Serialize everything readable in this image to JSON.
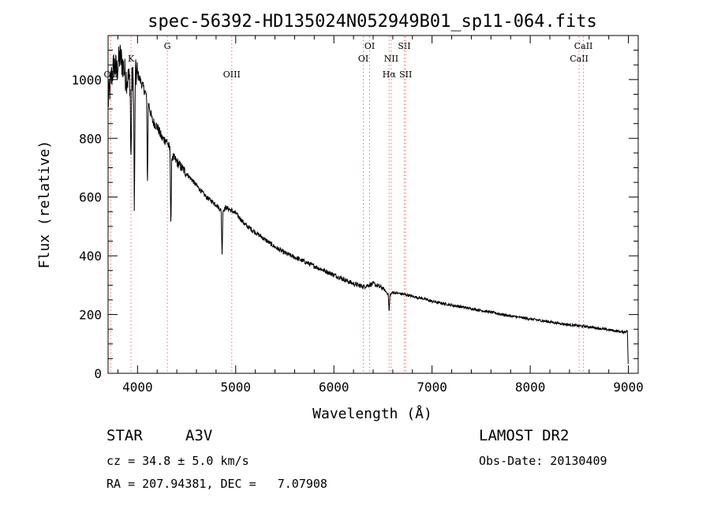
{
  "chart_data": {
    "type": "line",
    "title": "spec-56392-HD135024N052949B01_sp11-064.fits",
    "xlabel": "Wavelength (Å)",
    "ylabel": "Flux (relative)",
    "xlim": [
      3700,
      9100
    ],
    "ylim": [
      0,
      1150
    ],
    "x_ticks": [
      "4000",
      "5000",
      "6000",
      "7000",
      "8000",
      "9000"
    ],
    "x_tick_values": [
      4000,
      5000,
      6000,
      7000,
      8000,
      9000
    ],
    "y_ticks": [
      "0",
      "200",
      "400",
      "600",
      "800",
      "1000"
    ],
    "y_tick_values": [
      0,
      200,
      400,
      600,
      800,
      1000
    ],
    "grid": false,
    "series": [
      {
        "color": "#000000",
        "x": [
          3700,
          3730,
          3760,
          3790,
          3820,
          3850,
          3880,
          3910,
          3940,
          3970,
          4000,
          4050,
          4100,
          4150,
          4200,
          4250,
          4300,
          4350,
          4400,
          4500,
          4600,
          4700,
          4800,
          4861,
          4900,
          5000,
          5100,
          5200,
          5300,
          5400,
          5500,
          5600,
          5700,
          5800,
          5900,
          6000,
          6100,
          6200,
          6300,
          6400,
          6500,
          6563,
          6600,
          6700,
          6800,
          6900,
          7000,
          7200,
          7400,
          7600,
          7800,
          8000,
          8200,
          8400,
          8600,
          8800,
          8950,
          8990,
          9000
        ],
        "y": [
          920,
          1000,
          1050,
          1030,
          1080,
          1050,
          1010,
          1000,
          990,
          1010,
          1020,
          980,
          940,
          860,
          840,
          800,
          790,
          740,
          720,
          680,
          640,
          600,
          575,
          550,
          565,
          545,
          505,
          480,
          455,
          430,
          410,
          395,
          380,
          365,
          350,
          335,
          320,
          305,
          295,
          305,
          290,
          265,
          275,
          270,
          262,
          255,
          245,
          232,
          220,
          208,
          195,
          185,
          175,
          165,
          158,
          148,
          140,
          145,
          0
        ],
        "absorption_features": [
          {
            "x": 3933,
            "depth": 300
          },
          {
            "x": 3968,
            "depth": 500
          },
          {
            "x": 4101,
            "depth": 320
          },
          {
            "x": 4340,
            "depth": 260
          },
          {
            "x": 4861,
            "depth": 150
          },
          {
            "x": 6563,
            "depth": 60
          }
        ]
      }
    ],
    "line_markers": [
      {
        "label": "OII",
        "x": 3727,
        "row": 2
      },
      {
        "label": "K",
        "x": 3934,
        "row": 1
      },
      {
        "label": "G",
        "x": 4304,
        "row": 0
      },
      {
        "label": "OIII",
        "x": 4960,
        "row": 2
      },
      {
        "label": "OI",
        "x": 6300,
        "row": 1
      },
      {
        "label": "OI",
        "x": 6364,
        "row": 0
      },
      {
        "label": "Hα",
        "x": 6563,
        "row": 2
      },
      {
        "label": "NII",
        "x": 6584,
        "row": 1
      },
      {
        "label": "SII",
        "x": 6717,
        "row": 0
      },
      {
        "label": "SII",
        "x": 6731,
        "row": 2
      },
      {
        "label": "CaII",
        "x": 8498,
        "row": 1
      },
      {
        "label": "CaII",
        "x": 8542,
        "row": 0
      }
    ],
    "marker_color": "#ff6b6b"
  },
  "info": {
    "object_class": "STAR",
    "subclass": "A3V",
    "survey": "LAMOST DR2",
    "redshift": "cz = 34.8 ± 5.0 km/s",
    "obs_date": "Obs-Date: 20130409",
    "coords": "RA = 207.94381, DEC =   7.07908"
  }
}
